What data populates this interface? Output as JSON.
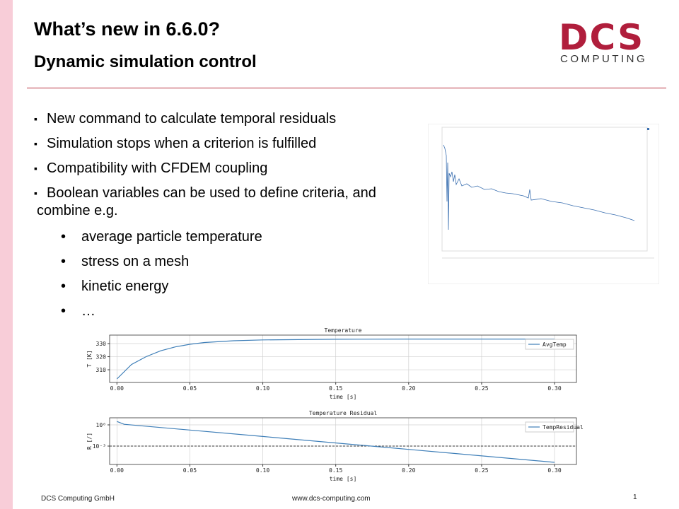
{
  "header": {
    "title": "What’s new in 6.6.0?",
    "subtitle": "Dynamic simulation control"
  },
  "logo": {
    "mark": "DCS",
    "text": "COMPUTING"
  },
  "bullets": [
    "New command to calculate temporal residuals",
    "Simulation stops when a criterion is fulfilled",
    "Compatibility with CFDEM coupling",
    "Boolean variables can be used to define criteria, and combine e.g."
  ],
  "sub_bullets": [
    "average particle temperature",
    "stress on a mesh",
    "kinetic energy",
    "…"
  ],
  "charts": [
    {
      "type": "line",
      "title": "Temperature",
      "xlabel": "time [s]",
      "ylabel": "T [K]",
      "x": [
        0,
        0.01,
        0.02,
        0.03,
        0.04,
        0.05,
        0.06,
        0.08,
        0.1,
        0.15,
        0.2,
        0.25,
        0.3
      ],
      "series": [
        {
          "name": "AvgTemp",
          "color": "#3f7fb8",
          "values": [
            303,
            314,
            320,
            324.5,
            327.5,
            329.5,
            330.8,
            332.2,
            332.8,
            333.3,
            333.5,
            333.5,
            333.5
          ]
        }
      ],
      "xlim": [
        -0.005,
        0.315
      ],
      "ylim": [
        300.3,
        336.5
      ],
      "xticks": [
        {
          "value": 0,
          "label": "0.00"
        },
        {
          "value": 0.05,
          "label": "0.05"
        },
        {
          "value": 0.1,
          "label": "0.10"
        },
        {
          "value": 0.15,
          "label": "0.15"
        },
        {
          "value": 0.2,
          "label": "0.20"
        },
        {
          "value": 0.25,
          "label": "0.25"
        },
        {
          "value": 0.3,
          "label": "0.30"
        }
      ],
      "yticks": [
        310,
        320,
        330
      ],
      "grid": true
    },
    {
      "type": "line",
      "title": "Temperature Residual",
      "xlabel": "time [s]",
      "ylabel": "R [/]",
      "log_y": true,
      "x": [
        0,
        0.005,
        0.1,
        0.2,
        0.3
      ],
      "series": [
        {
          "name": "TempResidual",
          "color": "#3f7fb8",
          "values": [
            3,
            1.2,
            0.023,
            0.00034,
            5e-06
          ]
        }
      ],
      "threshold": 0.001,
      "xlim": [
        -0.005,
        0.315
      ],
      "ylim": [
        2.5e-06,
        10
      ],
      "xticks": [
        {
          "value": 0,
          "label": "0.00"
        },
        {
          "value": 0.05,
          "label": "0.05"
        },
        {
          "value": 0.1,
          "label": "0.10"
        },
        {
          "value": 0.15,
          "label": "0.15"
        },
        {
          "value": 0.2,
          "label": "0.20"
        },
        {
          "value": 0.25,
          "label": "0.25"
        },
        {
          "value": 0.3,
          "label": "0.30"
        }
      ],
      "yticks": [
        {
          "value": 1,
          "label": "10⁰"
        },
        {
          "value": 0.001,
          "label": "10⁻³"
        }
      ],
      "grid": true
    }
  ],
  "footer": {
    "company": "DCS Computing GmbH",
    "url": "www.dcs-computing.com",
    "page": "1"
  }
}
